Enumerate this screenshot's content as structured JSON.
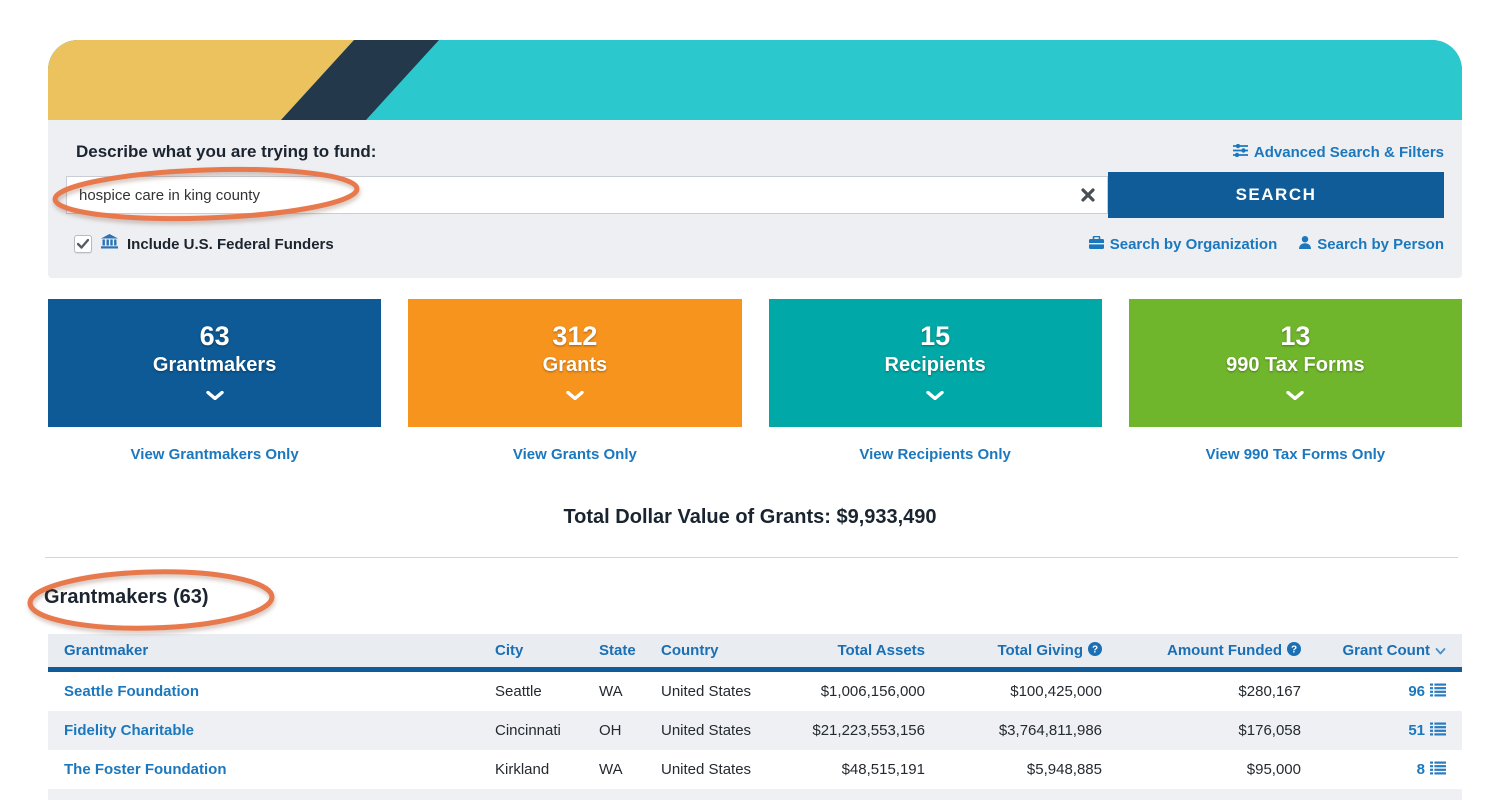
{
  "banner": {
    "colors": {
      "yellow": "#ecc25f",
      "navy": "#24384c",
      "teal": "#2bc9ce"
    }
  },
  "search": {
    "label": "Describe what you are trying to fund:",
    "advanced_link": "Advanced Search & Filters",
    "input_value": "hospice care in king county",
    "search_button": "SEARCH",
    "federal_checkbox_label": "Include U.S. Federal Funders",
    "federal_checked": "checked",
    "search_by_org": "Search by Organization",
    "search_by_person": "Search by Person"
  },
  "stats": {
    "cards": [
      {
        "value": "63",
        "label": "Grantmakers",
        "color": "#0d5a96",
        "link": "View Grantmakers Only"
      },
      {
        "value": "312",
        "label": "Grants",
        "color": "#f7941e",
        "link": "View Grants Only"
      },
      {
        "value": "15",
        "label": "Recipients",
        "color": "#00a9a7",
        "link": "View Recipients Only"
      },
      {
        "value": "13",
        "label": "990 Tax Forms",
        "color": "#70b62c",
        "link": "View 990 Tax Forms Only"
      }
    ]
  },
  "total_heading": "Total Dollar Value of Grants: $9,933,490",
  "table": {
    "section_title": "Grantmakers (63)",
    "headers": [
      "Grantmaker",
      "City",
      "State",
      "Country",
      "Total Assets",
      "Total Giving",
      "Amount Funded",
      "Grant Count"
    ],
    "rows": [
      {
        "grantmaker": "Seattle Foundation",
        "city": "Seattle",
        "state": "WA",
        "country": "United States",
        "total_assets": "$1,006,156,000",
        "total_giving": "$100,425,000",
        "amount_funded": "$280,167",
        "grant_count": "96"
      },
      {
        "grantmaker": "Fidelity Charitable",
        "city": "Cincinnati",
        "state": "OH",
        "country": "United States",
        "total_assets": "$21,223,553,156",
        "total_giving": "$3,764,811,986",
        "amount_funded": "$176,058",
        "grant_count": "51"
      },
      {
        "grantmaker": "The Foster Foundation",
        "city": "Kirkland",
        "state": "WA",
        "country": "United States",
        "total_assets": "$48,515,191",
        "total_giving": "$5,948,885",
        "amount_funded": "$95,000",
        "grant_count": "8"
      }
    ]
  },
  "annotation_color": "#e8794d"
}
